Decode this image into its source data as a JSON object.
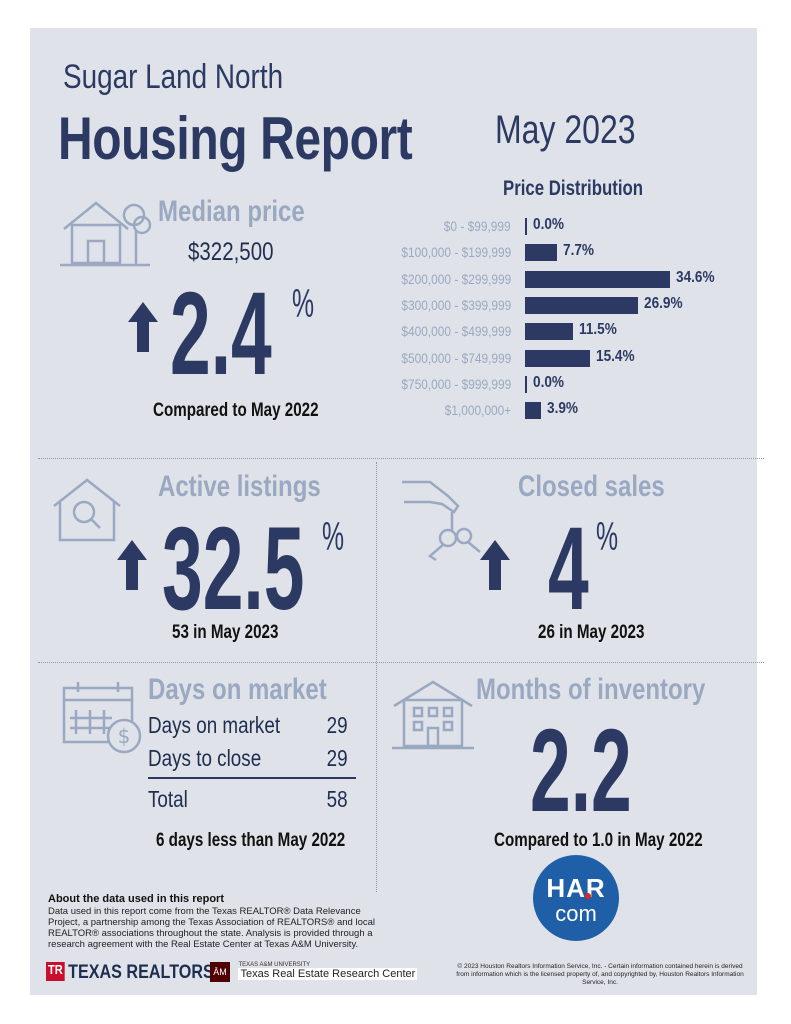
{
  "header": {
    "area": "Sugar Land North",
    "title": "Housing Report",
    "month": "May 2023"
  },
  "median_price": {
    "title": "Median price",
    "price": "$322,500",
    "change": "2.4",
    "pct": "%",
    "caption": "Compared to May 2022"
  },
  "chart_data": {
    "type": "bar",
    "orientation": "horizontal",
    "title": "Price Distribution",
    "categories": [
      "$0 - $99,999",
      "$100,000 - $199,999",
      "$200,000 - $299,999",
      "$300,000 - $399,999",
      "$400,000 - $499,999",
      "$500,000 - $749,999",
      "$750,000 - $999,999",
      "$1,000,000+"
    ],
    "values": [
      0.0,
      7.7,
      34.6,
      26.9,
      11.5,
      15.4,
      0.0,
      3.9
    ],
    "labels": [
      "0.0%",
      "7.7%",
      "34.6%",
      "26.9%",
      "11.5%",
      "15.4%",
      "0.0%",
      "3.9%"
    ],
    "unit": "%"
  },
  "active_listings": {
    "title": "Active listings",
    "change": "32.5",
    "pct": "%",
    "caption": "53 in May 2023"
  },
  "closed_sales": {
    "title": "Closed sales",
    "change": "4",
    "pct": "%",
    "caption": "26 in May 2023"
  },
  "days_on_market": {
    "title": "Days on market",
    "rows": [
      {
        "label": "Days on market",
        "value": "29"
      },
      {
        "label": "Days to close",
        "value": "29"
      }
    ],
    "total_label": "Total",
    "total_value": "58",
    "caption": "6 days less than May 2022"
  },
  "inventory": {
    "title": "Months of inventory",
    "value": "2.2",
    "caption": "Compared to 1.0 in May 2022"
  },
  "footer": {
    "about_title": "About the data used in this report",
    "about_body": "Data used in this report come from the Texas REALTOR® Data Relevance Project, a partnership among the Texas Association of REALTORS® and local REALTOR® associations throughout the state. Analysis is provided through a research agreement with the Real Estate Center at Texas A&M University.",
    "copyright": "© 2023 Houston Realtors Information Service, Inc. - Certain information contained herein is derived from information which is the licensed property of, and copyrighted by, Houston Realtors Information Service, Inc.",
    "texas_realtors": "TEXAS REALTORS",
    "tr_badge": "TR",
    "tam_small": "TEXAS A&M UNIVERSITY",
    "tam_big": "Texas Real Estate Research Center",
    "tam_badge": "ĀM",
    "har_top": "HAR",
    "har_bottom": "com"
  },
  "colors": {
    "navy": "#2c3a63",
    "light": "#9aa9c1",
    "background": "#dfe3e9",
    "har_blue": "#1f5fa8"
  }
}
